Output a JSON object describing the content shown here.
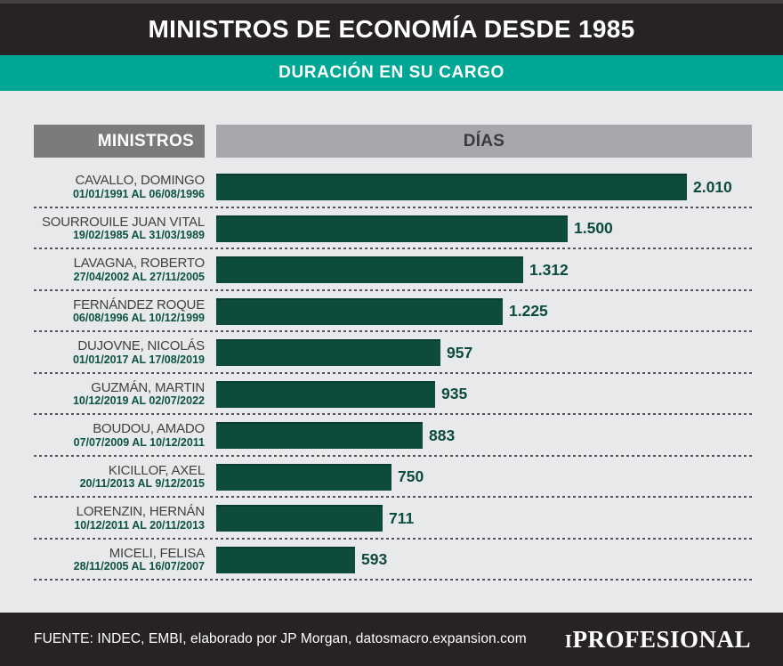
{
  "header": {
    "title": "MINISTROS DE ECONOMÍA DESDE 1985"
  },
  "subheader": {
    "title": "DURACIÓN EN SU CARGO"
  },
  "columns": {
    "ministers": "MINISTROS",
    "days": "DÍAS"
  },
  "chart_data": {
    "type": "bar",
    "orientation": "horizontal",
    "title": "MINISTROS DE ECONOMÍA DESDE 1985",
    "subtitle": "DURACIÓN EN SU CARGO",
    "xlabel": "DÍAS",
    "ylabel": "MINISTROS",
    "xlim": [
      0,
      2010
    ],
    "grid": false,
    "bar_color": "#0d4b3c",
    "rows": [
      {
        "name": "CAVALLO, DOMINGO",
        "period": "01/01/1991 AL 06/08/1996",
        "days": 2010,
        "label": "2.010"
      },
      {
        "name": "SOURROUILE JUAN VITAL",
        "period": "19/02/1985 AL 31/03/1989",
        "days": 1500,
        "label": "1.500"
      },
      {
        "name": "LAVAGNA, ROBERTO",
        "period": "27/04/2002 AL 27/11/2005",
        "days": 1312,
        "label": "1.312"
      },
      {
        "name": "FERNÁNDEZ ROQUE",
        "period": "06/08/1996 AL 10/12/1999",
        "days": 1225,
        "label": "1.225"
      },
      {
        "name": "DUJOVNE, NICOLÁS",
        "period": "01/01/2017 AL 17/08/2019",
        "days": 957,
        "label": "957"
      },
      {
        "name": "GUZMÁN, MARTIN",
        "period": "10/12/2019 AL 02/07/2022",
        "days": 935,
        "label": "935"
      },
      {
        "name": "BOUDOU, AMADO",
        "period": "07/07/2009 AL 10/12/2011",
        "days": 883,
        "label": "883"
      },
      {
        "name": "KICILLOF, AXEL",
        "period": "20/11/2013 AL 9/12/2015",
        "days": 750,
        "label": "750"
      },
      {
        "name": "LORENZIN, HERNÁN",
        "period": "10/12/2011 AL 20/11/2013",
        "days": 711,
        "label": "711"
      },
      {
        "name": "MICELI, FELISA",
        "period": "28/11/2005 AL 16/07/2007",
        "days": 593,
        "label": "593"
      }
    ]
  },
  "footer": {
    "source": "FUENTE: INDEC, EMBI, elaborado por JP Morgan, datosmacro.expansion.com",
    "brand_prefix": "I",
    "brand_name": "PROFESIONAL"
  },
  "colors": {
    "header_black": "#272324",
    "teal": "#00a795",
    "background": "#e8e9ea",
    "bar_green": "#0d4b3c",
    "column_dark_gray": "#7b7b7e",
    "column_light_gray": "#a7a8ac",
    "date_green": "#0c5440",
    "name_gray": "#414143"
  }
}
